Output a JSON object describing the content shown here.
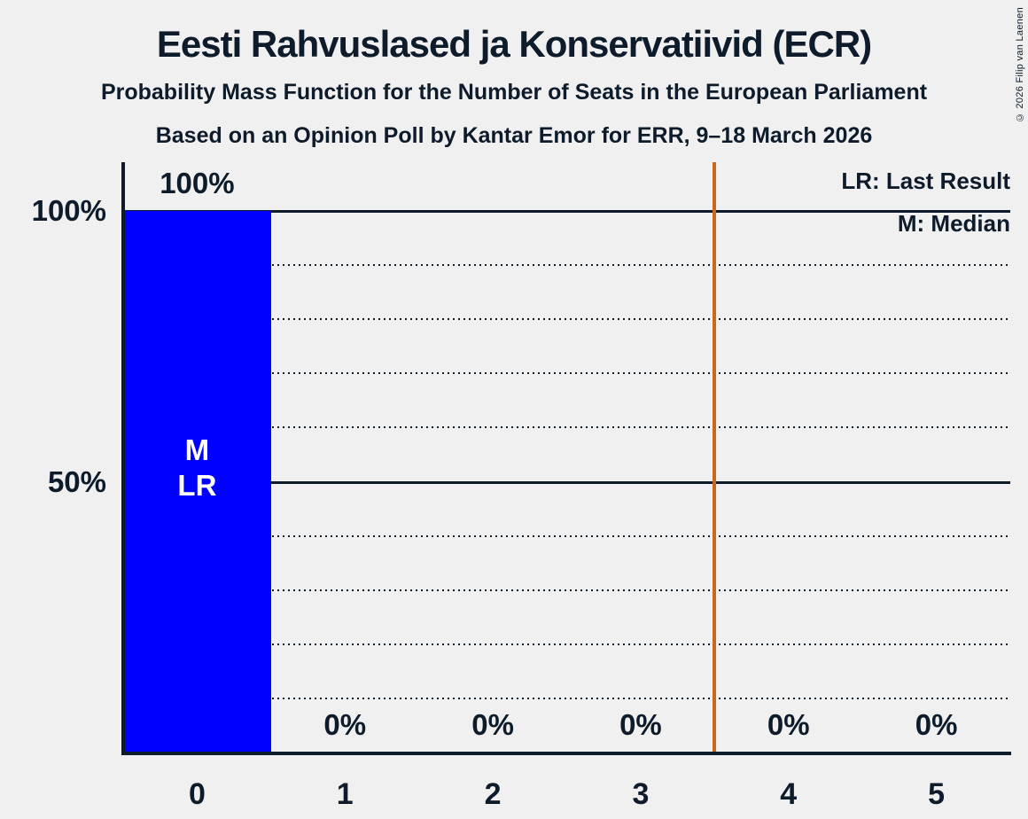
{
  "copyright": "© 2026 Filip van Laenen",
  "legend": {
    "lr": "LR: Last Result",
    "m": "M: Median"
  },
  "chart_data": {
    "type": "bar",
    "title": "Eesti Rahvuslased ja Konservatiivid (ECR)",
    "subtitle": "Probability Mass Function for the Number of Seats in the European Parliament",
    "source": "Based on an Opinion Poll by Kantar Emor for ERR, 9–18 March 2026",
    "xlabel": "",
    "ylabel": "",
    "categories": [
      "0",
      "1",
      "2",
      "3",
      "4",
      "5"
    ],
    "values": [
      100,
      0,
      0,
      0,
      0,
      0
    ],
    "value_labels": [
      "100%",
      "0%",
      "0%",
      "0%",
      "0%",
      "0%"
    ],
    "ylim": [
      0,
      100
    ],
    "y_ticks": [
      {
        "value": 100,
        "label": "100%"
      },
      {
        "value": 50,
        "label": "50%"
      }
    ],
    "gridlines": {
      "solid": [
        100,
        50
      ],
      "dotted": [
        90,
        80,
        70,
        60,
        40,
        30,
        20,
        10
      ]
    },
    "median_seats": 0,
    "last_result_seats": 0,
    "bar_annotation": {
      "bar_index": 0,
      "lines": [
        "M",
        "LR"
      ]
    },
    "vertical_line": {
      "x": 3.5
    },
    "legend_entries": [
      "LR: Last Result",
      "M: Median"
    ],
    "legend_position": "top-right",
    "colors": {
      "bar": "#0000ff",
      "vertical_line": "#c8691e",
      "text": "#0d1b2a",
      "annotation_text": "#ffffff",
      "background": "#f0f0f0"
    }
  }
}
